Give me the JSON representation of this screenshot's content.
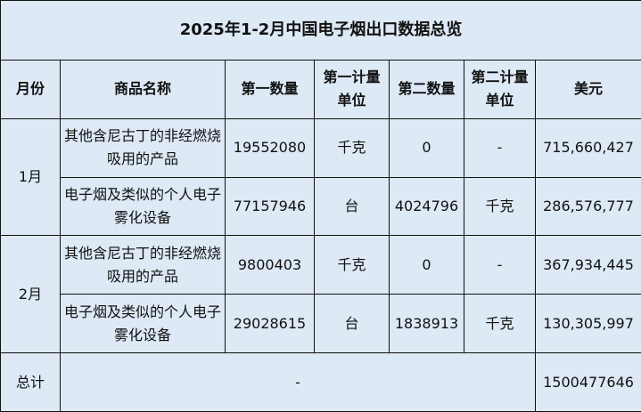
{
  "title": "2025年1-2月中国电子烟出口数据总览",
  "headers": [
    "月份",
    "商品名称",
    "第一数量",
    "第一计量单位",
    "第二数量",
    "第二计量单位",
    "美元"
  ],
  "months": [
    {
      "label": "1月",
      "rows": [
        {
          "name": "其他含尼古丁的非经燃烧吸用的产品",
          "qty1": "19552080",
          "unit1": "千克",
          "qty2": "0",
          "unit2": "-",
          "usd": "715,660,427"
        },
        {
          "name": "电子烟及类似的个人电子雾化设备",
          "qty1": "77157946",
          "unit1": "台",
          "qty2": "4024796",
          "unit2": "千克",
          "usd": "286,576,777"
        }
      ]
    },
    {
      "label": "2月",
      "rows": [
        {
          "name": "其他含尼古丁的非经燃烧吸用的产品",
          "qty1": "9800403",
          "unit1": "千克",
          "qty2": "0",
          "unit2": "-",
          "usd": "367,934,445"
        },
        {
          "name": "电子烟及类似的个人电子雾化设备",
          "qty1": "29028615",
          "unit1": "台",
          "qty2": "1838913",
          "unit2": "千克",
          "usd": "130,305,997"
        }
      ]
    }
  ],
  "total": {
    "label": "总计",
    "middle": "-",
    "usd": "1500477646"
  }
}
